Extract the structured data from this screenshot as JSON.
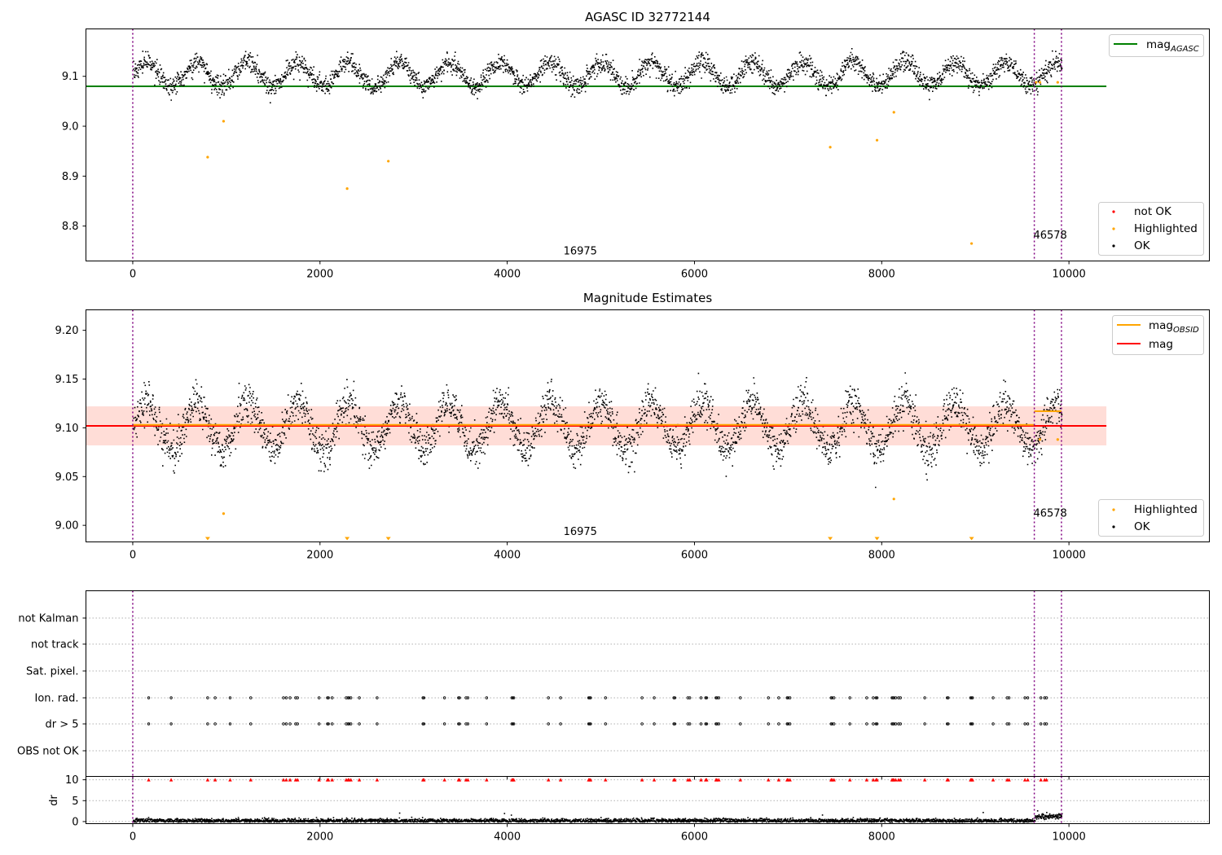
{
  "chart_data": [
    {
      "type": "scatter",
      "title": "AGASC ID 32772144",
      "xlim": [
        -500,
        11500
      ],
      "ylim": [
        8.73,
        9.195
      ],
      "x_ticks": [
        0,
        2000,
        4000,
        6000,
        8000,
        10000
      ],
      "x_tick_labels": [
        "0",
        "2000",
        "4000",
        "6000",
        "8000",
        "10000"
      ],
      "y_ticks": [
        8.8,
        8.9,
        9.0,
        9.1
      ],
      "y_tick_labels": [
        "8.8",
        "8.9",
        "9.0",
        "9.1"
      ],
      "reference_line": {
        "name": "mag",
        "subscript": "AGASC",
        "value": 9.08,
        "x_range": [
          -500,
          10400
        ],
        "color": "#008000"
      },
      "obsid_lines": [
        0,
        9630,
        9920
      ],
      "annotations": [
        {
          "text": "16975",
          "x": 4600,
          "y": 8.743
        },
        {
          "text": "46578",
          "x": 9620,
          "y": 8.775
        }
      ],
      "ok_points": {
        "name": "OK",
        "x_range": [
          0,
          9920
        ],
        "mag_mean": 9.105,
        "mag_scatter": 0.022,
        "oscillation_period": 540,
        "oscillation_amplitude": 0.024,
        "color": "#000000"
      },
      "highlighted": {
        "name": "Highlighted",
        "color": "#ffa500",
        "x": [
          800,
          970,
          2290,
          2730,
          7450,
          7950,
          8130,
          8960,
          9650,
          9690,
          9880
        ],
        "y": [
          8.938,
          9.01,
          8.875,
          8.93,
          8.958,
          8.972,
          9.028,
          8.765,
          9.088,
          9.088,
          9.088
        ]
      },
      "legend_lines": [
        {
          "name": "mag",
          "subscript": "AGASC",
          "color": "#008000"
        }
      ],
      "legend_points": [
        {
          "name": "not OK",
          "color": "#ff0000"
        },
        {
          "name": "Highlighted",
          "color": "#ffa500"
        },
        {
          "name": "OK",
          "color": "#000000"
        }
      ]
    },
    {
      "type": "scatter",
      "title": "Magnitude Estimates",
      "xlim": [
        -500,
        11500
      ],
      "ylim": [
        8.983,
        9.221
      ],
      "x_ticks": [
        0,
        2000,
        4000,
        6000,
        8000,
        10000
      ],
      "x_tick_labels": [
        "0",
        "2000",
        "4000",
        "6000",
        "8000",
        "10000"
      ],
      "y_ticks": [
        9.0,
        9.05,
        9.1,
        9.15,
        9.2
      ],
      "y_tick_labels": [
        "9.00",
        "9.05",
        "9.10",
        "9.15",
        "9.20"
      ],
      "mag_line": {
        "name": "mag",
        "value": 9.102,
        "band": [
          9.082,
          9.122
        ],
        "x_range": [
          -500,
          10400
        ],
        "color": "#ff0000"
      },
      "obsid_mag": [
        {
          "x_range": [
            0,
            9630
          ],
          "value": 9.103
        },
        {
          "x_range": [
            9630,
            9920
          ],
          "value": 9.117
        }
      ],
      "obsid_lines": [
        0,
        9630,
        9920
      ],
      "annotations": [
        {
          "text": "16975",
          "x": 4600,
          "y": 8.99
        },
        {
          "text": "46578",
          "x": 9620,
          "y": 9.009
        }
      ],
      "ok_points": {
        "name": "OK",
        "x_range": [
          0,
          9920
        ],
        "mag_mean": 9.102,
        "mag_scatter": 0.02,
        "oscillation_period": 540,
        "oscillation_amplitude": 0.024,
        "color": "#000000"
      },
      "highlighted": {
        "name": "Highlighted",
        "color": "#ffa500",
        "x": [
          970,
          8130,
          9690,
          9880
        ],
        "y": [
          9.012,
          9.027,
          9.088,
          9.088
        ]
      },
      "off_scale_markers": [
        800,
        2290,
        2730,
        7450,
        7950,
        8960
      ],
      "legend_lines": [
        {
          "name": "mag",
          "subscript": "OBSID",
          "color": "#ffa500"
        },
        {
          "name": "mag",
          "subscript": "",
          "color": "#ff0000"
        }
      ],
      "legend_points": [
        {
          "name": "Highlighted",
          "color": "#ffa500"
        },
        {
          "name": "OK",
          "color": "#000000"
        }
      ]
    },
    {
      "type": "scatter",
      "title": "",
      "xlim": [
        -500,
        11500
      ],
      "x_ticks": [
        0,
        2000,
        4000,
        6000,
        8000,
        10000
      ],
      "x_tick_labels": [
        "0",
        "2000",
        "4000",
        "6000",
        "8000",
        "10000"
      ],
      "flag_rows": [
        "not Kalman",
        "not track",
        "Sat. pixel.",
        "Ion. rad.",
        "dr > 5",
        "OBS not OK"
      ],
      "flagged_x": [
        170,
        410,
        800,
        880,
        1040,
        1260,
        1610,
        1640,
        1680,
        1740,
        1760,
        1990,
        2080,
        2090,
        2130,
        2280,
        2300,
        2310,
        2330,
        2420,
        2610,
        3100,
        3110,
        3330,
        3480,
        3490,
        3560,
        3580,
        3780,
        4050,
        4060,
        4070,
        4440,
        4570,
        4870,
        4880,
        4890,
        5050,
        5440,
        5570,
        5780,
        5790,
        5930,
        5950,
        6070,
        6120,
        6130,
        6230,
        6240,
        6260,
        6490,
        6790,
        6900,
        6990,
        7000,
        7020,
        7460,
        7470,
        7490,
        7660,
        7840,
        7910,
        7940,
        7950,
        8110,
        8120,
        8130,
        8150,
        8180,
        8200,
        8460,
        8700,
        8710,
        8950,
        8960,
        8970,
        9190,
        9340,
        9360,
        9530,
        9560,
        9700,
        9740,
        9760
      ],
      "dr_panel": {
        "ylabel": "dr",
        "ylim": [
          -0.5,
          10.8
        ],
        "y_ticks": [
          0,
          5,
          10
        ],
        "y_tick_labels": [
          "0",
          "5",
          "10"
        ],
        "dr_mean": 0.35,
        "dr_scatter": 0.25,
        "clip_value": 10
      },
      "obsid_lines": [
        0,
        9630,
        9920
      ]
    }
  ]
}
